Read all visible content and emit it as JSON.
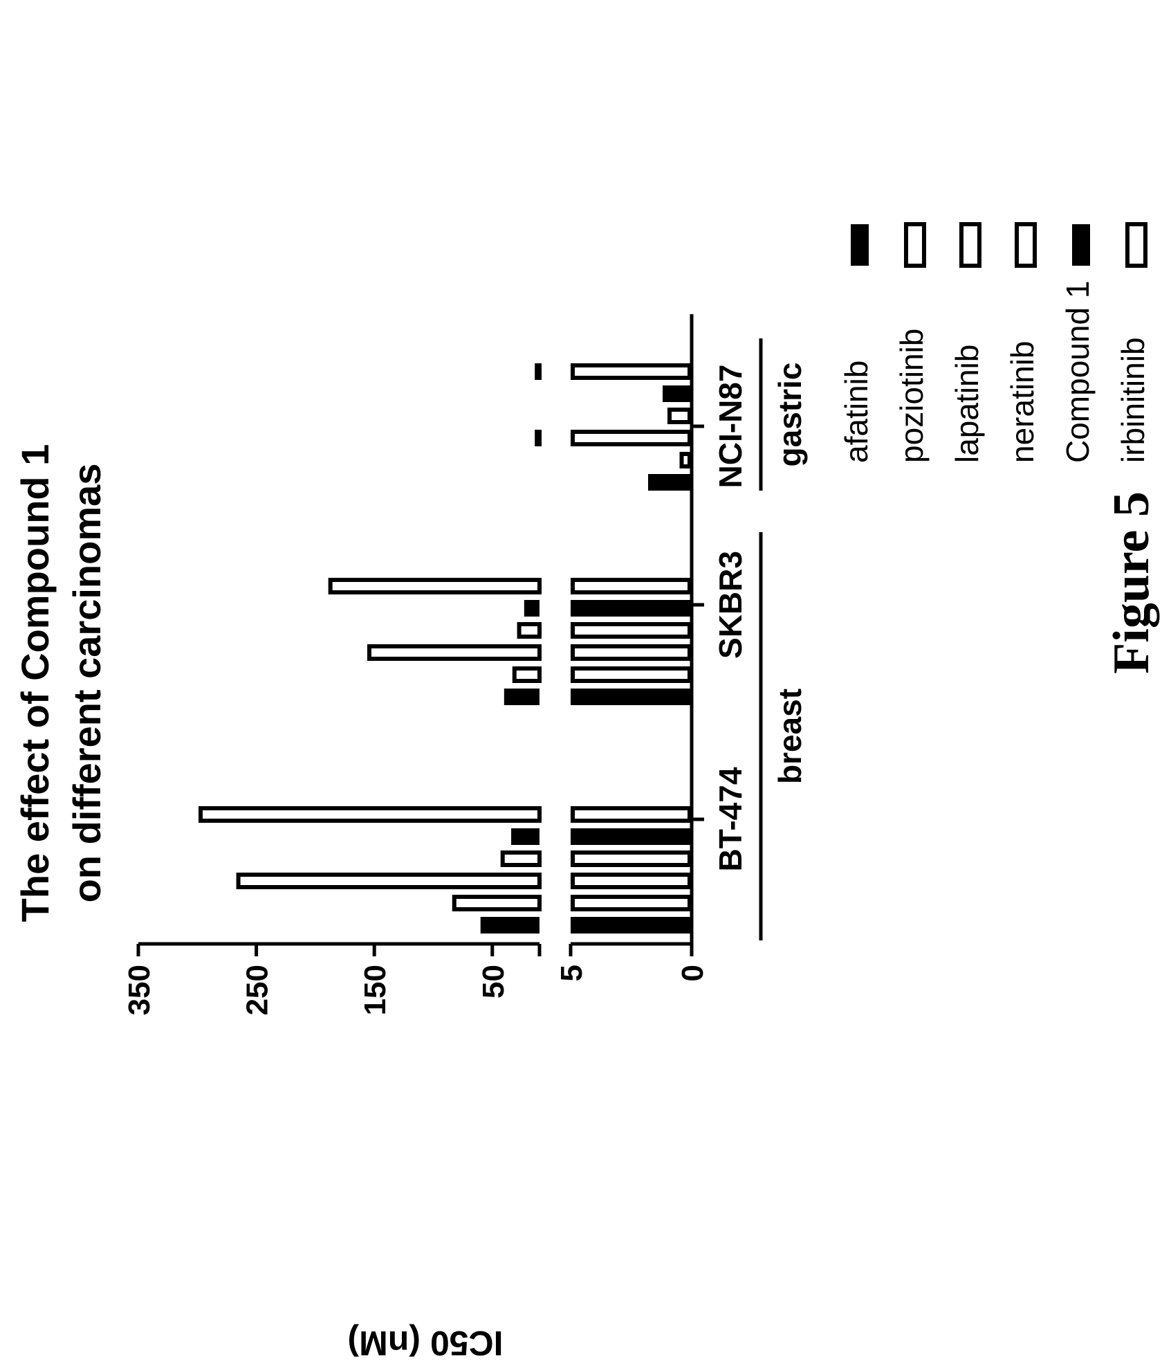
{
  "chart_data": {
    "type": "bar",
    "orientation": "rotated 90 degrees counter-clockwise",
    "title_lines": [
      "The effect of Compound 1",
      "on different carcinomas"
    ],
    "ylabel": "IC50 (nM)",
    "xlabel": "",
    "y_axis_broken": true,
    "y_axis_lower": {
      "range": [
        0,
        5
      ],
      "ticks": [
        "0",
        "5"
      ]
    },
    "y_axis_upper": {
      "range": [
        10,
        350
      ],
      "ticks": [
        "50",
        "150",
        "250",
        "350"
      ]
    },
    "categories": [
      "BT-474",
      "SKBR3",
      "NCI-N87"
    ],
    "groups": [
      {
        "label": "breast",
        "categories": [
          "BT-474",
          "SKBR3"
        ]
      },
      {
        "label": "gastric",
        "categories": [
          "NCI-N87"
        ]
      }
    ],
    "series": [
      {
        "name": "afatinib",
        "fill": "solid",
        "values": [
          60,
          40,
          1.8
        ]
      },
      {
        "name": "poziotinib",
        "fill": "hollow",
        "values": [
          84,
          33,
          0.5
        ]
      },
      {
        "name": "lapatinib",
        "fill": "hollow",
        "values": [
          267,
          156,
          14
        ]
      },
      {
        "name": "neratinib",
        "fill": "hollow",
        "values": [
          43,
          29,
          1.0
        ]
      },
      {
        "name": "Compound 1",
        "fill": "solid",
        "values": [
          34,
          23,
          1.2
        ]
      },
      {
        "name": "irbinitinib",
        "fill": "hollow",
        "values": [
          299,
          189,
          14
        ]
      }
    ],
    "legend_position": "right",
    "grid": false,
    "caption": "Figure 5"
  }
}
